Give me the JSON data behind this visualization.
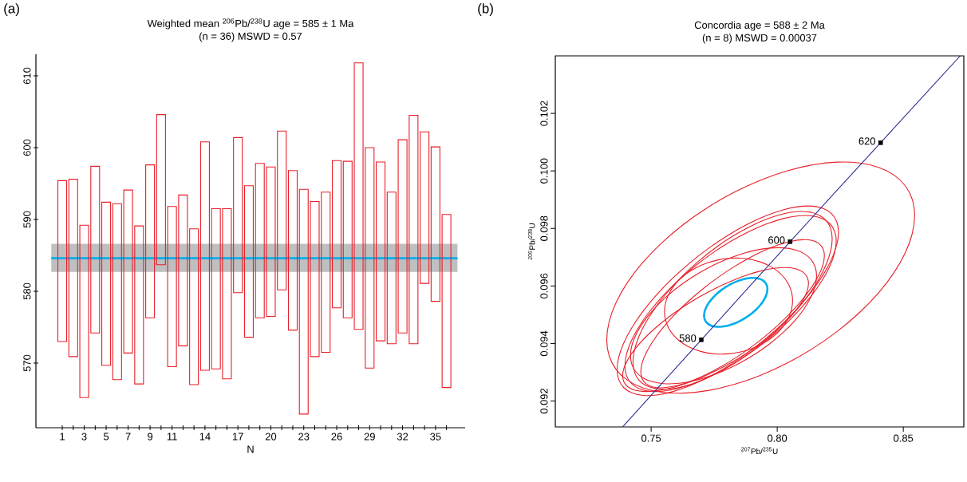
{
  "chart_data": [
    {
      "type": "bar",
      "title": "Weighted mean $^{206}$Pb/$^{238}$U age = 585 ± 1 Ma",
      "subtitle": "(n = 36)  MSWD = 0.57",
      "xlabel": "N",
      "categories": [
        "1",
        null,
        "3",
        null,
        "5",
        null,
        "7",
        null,
        "9",
        null,
        "11",
        null,
        null,
        "14",
        null,
        null,
        "17",
        null,
        null,
        "20",
        null,
        null,
        "23",
        null,
        null,
        "26",
        null,
        null,
        "29",
        null,
        null,
        "32",
        null,
        null,
        "35",
        null
      ],
      "base": [
        573.0,
        570.9,
        565.2,
        574.2,
        569.7,
        567.7,
        571.4,
        567.1,
        576.3,
        583.7,
        569.5,
        572.4,
        567.0,
        569.0,
        569.2,
        567.8,
        579.8,
        573.6,
        576.3,
        576.5,
        580.2,
        574.6,
        562.9,
        570.9,
        571.5,
        577.7,
        576.3,
        574.7,
        569.3,
        573.1,
        572.7,
        574.2,
        572.7,
        581.1,
        578.6,
        566.6
      ],
      "values": [
        22.4,
        24.7,
        24.0,
        23.2,
        22.7,
        24.5,
        22.7,
        22.0,
        21.3,
        20.9,
        22.3,
        21.0,
        21.7,
        31.8,
        22.3,
        23.7,
        21.6,
        21.1,
        21.5,
        20.8,
        22.1,
        22.2,
        31.3,
        21.6,
        22.3,
        20.5,
        21.8,
        37.1,
        30.7,
        24.9,
        21.1,
        26.9,
        31.8,
        21.1,
        21.5,
        24.1
      ],
      "color": "#e8202a",
      "ylim": [
        561,
        613
      ],
      "yticks": [
        570,
        580,
        590,
        600,
        610
      ],
      "bands": [
        {
          "axis": "y",
          "from": 582.7,
          "to": 586.6,
          "color": "#bfbfbf"
        }
      ],
      "ref_lines": [
        {
          "axis": "y",
          "value": 584.6,
          "color": "#00aeef"
        }
      ],
      "annotations": [
        "(a)"
      ]
    },
    {
      "type": "line",
      "title": "Concordia age = 588 ± 2 Ma",
      "subtitle": "(n = 8)  MSWD = 0.00037",
      "xlabel": "$^{207}$Pb/$^{235}$U",
      "ylabel": "$^{206}$Pb/$^{238}$U",
      "xlim": [
        0.712,
        0.874
      ],
      "ylim": [
        0.0911,
        0.104
      ],
      "xticks": [
        0.75,
        {
          "value": 0.8,
          "label": "0.80"
        },
        0.85
      ],
      "yticks": [
        0.092,
        0.094,
        0.096,
        0.098,
        {
          "value": 0.1,
          "label": "0.100"
        },
        0.102
      ],
      "series": [
        {
          "type": "line",
          "color": "#2e3192",
          "x": [
            0.7387,
            0.7699,
            0.8051,
            0.841,
            0.8726
          ],
          "values": [
            0.0911,
            0.09413,
            0.09754,
            0.10098,
            0.104
          ]
        },
        {
          "type": "scatter",
          "marker": "square",
          "color": "#000000",
          "x": [
            0.7699,
            0.8051,
            0.841
          ],
          "values": [
            0.09413,
            0.09754,
            0.10098
          ]
        }
      ],
      "annotations": [
        "(b)",
        {
          "text": "580",
          "x": 0.7699,
          "y": 0.09413
        },
        {
          "text": "600",
          "x": 0.8051,
          "y": 0.09754
        },
        {
          "text": "620",
          "x": 0.841,
          "y": 0.10098
        }
      ]
    }
  ]
}
